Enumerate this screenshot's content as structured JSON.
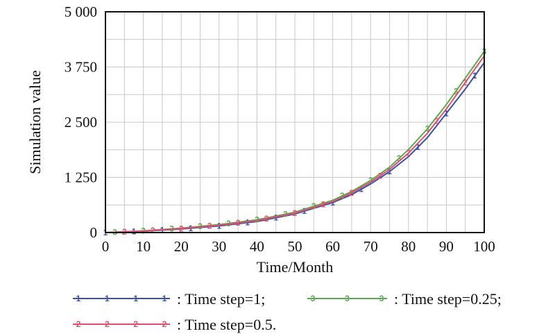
{
  "chart_data": {
    "type": "line",
    "xlabel": "Time/Month",
    "ylabel": "Simulation value",
    "xlim": [
      0,
      100
    ],
    "ylim": [
      0,
      5000
    ],
    "xticks": [
      0,
      10,
      20,
      30,
      40,
      50,
      60,
      70,
      80,
      90,
      100
    ],
    "yticks": [
      0,
      1250,
      2500,
      3750,
      5000
    ],
    "xtick_labels": [
      "0",
      "10",
      "20",
      "30",
      "40",
      "50",
      "60",
      "70",
      "80",
      "90",
      "100"
    ],
    "ytick_labels": [
      "0",
      "1 250",
      "2 500",
      "3 750",
      "5 000"
    ],
    "grid": true,
    "legend_position": "bottom",
    "series": [
      {
        "name": ": Time step=1;",
        "marker": "1",
        "color": "#3b4fa8",
        "x": [
          0,
          10,
          20,
          30,
          40,
          50,
          60,
          65,
          70,
          75,
          80,
          85,
          90,
          95,
          100
        ],
        "y": [
          0,
          30,
          80,
          150,
          250,
          420,
          680,
          860,
          1100,
          1380,
          1720,
          2150,
          2700,
          3250,
          3850
        ]
      },
      {
        "name": ": Time step=0.25;",
        "marker": "3",
        "color": "#5aa84f",
        "x": [
          0,
          10,
          20,
          30,
          40,
          50,
          60,
          65,
          70,
          75,
          80,
          85,
          90,
          95,
          100
        ],
        "y": [
          0,
          40,
          100,
          180,
          290,
          460,
          730,
          930,
          1180,
          1480,
          1880,
          2350,
          2900,
          3500,
          4100
        ]
      },
      {
        "name": ": Time step=0.5.",
        "marker": "2",
        "color": "#e0506a",
        "x": [
          0,
          10,
          20,
          30,
          40,
          50,
          60,
          65,
          70,
          75,
          80,
          85,
          90,
          95,
          100
        ],
        "y": [
          0,
          35,
          90,
          165,
          270,
          440,
          700,
          900,
          1140,
          1430,
          1800,
          2250,
          2800,
          3400,
          4000
        ]
      }
    ]
  }
}
